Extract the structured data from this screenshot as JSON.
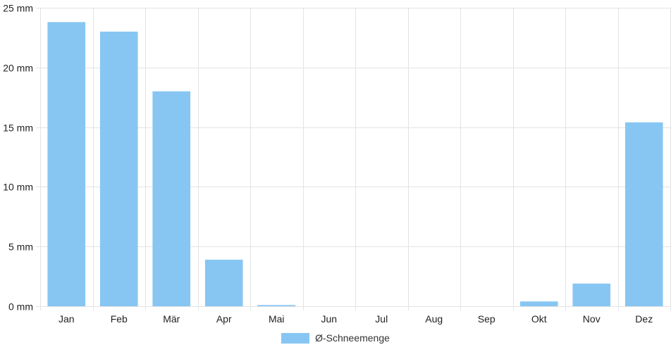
{
  "chart_data": {
    "type": "bar",
    "categories": [
      "Jan",
      "Feb",
      "Mär",
      "Apr",
      "Mai",
      "Jun",
      "Jul",
      "Aug",
      "Sep",
      "Okt",
      "Nov",
      "Dez"
    ],
    "series": [
      {
        "name": "Ø-Schneemenge",
        "values": [
          23.8,
          23.0,
          18.0,
          3.9,
          0.1,
          0,
          0,
          0,
          0,
          0.4,
          1.9,
          15.4
        ]
      }
    ],
    "ylim": [
      0,
      25
    ],
    "yticks": [
      0,
      5,
      10,
      15,
      20,
      25
    ],
    "ytick_labels": [
      "0 mm",
      "5 mm",
      "10 mm",
      "15 mm",
      "20 mm",
      "25 mm"
    ],
    "grid": true,
    "legend_position": "bottom-center",
    "bar_color": "#87C6F2",
    "grid_color": "#E3E3E3"
  }
}
